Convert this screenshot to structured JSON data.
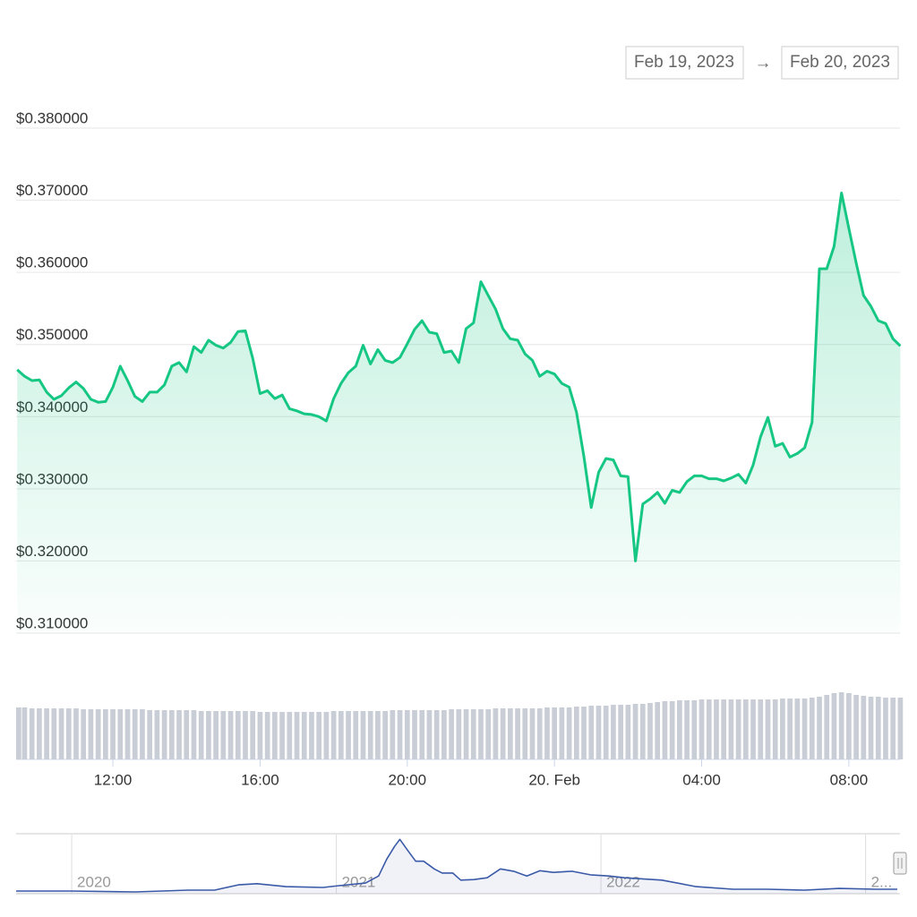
{
  "controls": {
    "from": "Feb 19, 2023",
    "separator": "→",
    "to": "Feb 20, 2023"
  },
  "chart_data": [
    {
      "type": "area",
      "color": "#16c784",
      "x": [
        9.4,
        9.6,
        9.8,
        10,
        10.2,
        10.4,
        10.6,
        10.8,
        11,
        11.2,
        11.4,
        11.6,
        11.8,
        12,
        12.2,
        12.4,
        12.6,
        12.8,
        13,
        13.2,
        13.4,
        13.6,
        13.8,
        14,
        14.2,
        14.4,
        14.6,
        14.8,
        15,
        15.2,
        15.4,
        15.6,
        15.8,
        16,
        16.2,
        16.4,
        16.6,
        16.8,
        17,
        17.2,
        17.4,
        17.6,
        17.8,
        18,
        18.2,
        18.4,
        18.6,
        18.8,
        19,
        19.2,
        19.4,
        19.6,
        19.8,
        20,
        20.2,
        20.4,
        20.6,
        20.8,
        21,
        21.2,
        21.4,
        21.6,
        21.8,
        22,
        22.2,
        22.4,
        22.6,
        22.8,
        23,
        23.2,
        23.4,
        23.6,
        23.8,
        24,
        24.2,
        24.4,
        24.6,
        24.8,
        25,
        25.2,
        25.4,
        25.6,
        25.8,
        26,
        26.2,
        26.4,
        26.6,
        26.8,
        27,
        27.2,
        27.4,
        27.6,
        27.8,
        28,
        28.2,
        28.4,
        28.6,
        28.8,
        29,
        29.2,
        29.4,
        29.6,
        29.8,
        30,
        30.2,
        30.4,
        30.6,
        30.8,
        31,
        31.2,
        31.4,
        31.6,
        31.8,
        32,
        32.2,
        32.4,
        32.6,
        32.8,
        33,
        33.2,
        33.4
      ],
      "values": [
        0.3465,
        0.3456,
        0.345,
        0.3451,
        0.3434,
        0.3424,
        0.3429,
        0.344,
        0.3448,
        0.3439,
        0.3424,
        0.342,
        0.3421,
        0.3441,
        0.347,
        0.345,
        0.3428,
        0.3421,
        0.3434,
        0.3434,
        0.3444,
        0.347,
        0.3475,
        0.3462,
        0.3497,
        0.3489,
        0.3506,
        0.3499,
        0.3495,
        0.3503,
        0.3518,
        0.3519,
        0.3481,
        0.3432,
        0.3436,
        0.3425,
        0.343,
        0.3411,
        0.3408,
        0.3404,
        0.3403,
        0.34,
        0.3394,
        0.3425,
        0.3446,
        0.3461,
        0.347,
        0.3499,
        0.3473,
        0.3493,
        0.3478,
        0.3475,
        0.3482,
        0.3501,
        0.3521,
        0.3533,
        0.3517,
        0.3515,
        0.3489,
        0.3491,
        0.3475,
        0.3522,
        0.353,
        0.3587,
        0.3568,
        0.3549,
        0.3522,
        0.3508,
        0.3506,
        0.3487,
        0.3478,
        0.3456,
        0.3463,
        0.3459,
        0.3446,
        0.3441,
        0.3406,
        0.3345,
        0.3274,
        0.3323,
        0.3342,
        0.334,
        0.3318,
        0.3317,
        0.32,
        0.3279,
        0.3286,
        0.3295,
        0.328,
        0.3298,
        0.3295,
        0.331,
        0.3318,
        0.3318,
        0.3314,
        0.3314,
        0.3311,
        0.3315,
        0.332,
        0.3308,
        0.3333,
        0.3372,
        0.3399,
        0.3359,
        0.3363,
        0.3344,
        0.3349,
        0.3357,
        0.3392,
        0.3605,
        0.3605,
        0.3636,
        0.371,
        0.3661,
        0.3613,
        0.3568,
        0.3553,
        0.3533,
        0.3529,
        0.3508,
        0.3498
      ],
      "volume": [
        58,
        58,
        57,
        57,
        57,
        57,
        57,
        57,
        57,
        56,
        56,
        56,
        56,
        56,
        56,
        56,
        56,
        56,
        55,
        55,
        55,
        55,
        55,
        55,
        55,
        54,
        54,
        54,
        54,
        54,
        54,
        54,
        54,
        53,
        53,
        53,
        53,
        53,
        53,
        53,
        53,
        53,
        53,
        54,
        54,
        54,
        54,
        54,
        54,
        54,
        54,
        55,
        55,
        55,
        55,
        55,
        55,
        55,
        55,
        56,
        56,
        56,
        56,
        56,
        56,
        57,
        57,
        57,
        57,
        57,
        57,
        57,
        58,
        58,
        58,
        58,
        59,
        59,
        60,
        60,
        60,
        61,
        61,
        61,
        62,
        62,
        63,
        64,
        65,
        65,
        66,
        66,
        66,
        67,
        67,
        67,
        67,
        67,
        67,
        67,
        67,
        67,
        67,
        67,
        68,
        68,
        68,
        68,
        69,
        70,
        72,
        74,
        75,
        74,
        72,
        71,
        70,
        70,
        69,
        69,
        69
      ],
      "volume_color": "#c9ced6",
      "xlim": [
        9.37,
        33.39
      ],
      "xticks": [
        {
          "value": 12,
          "label": "12:00"
        },
        {
          "value": 16,
          "label": "16:00"
        },
        {
          "value": 20,
          "label": "20:00"
        },
        {
          "value": 24,
          "label": "20. Feb"
        },
        {
          "value": 28,
          "label": "04:00"
        },
        {
          "value": 32,
          "label": "08:00"
        }
      ],
      "ylim": [
        0.31,
        0.38
      ],
      "yticks": [
        {
          "value": 0.38,
          "label": "$0.380000"
        },
        {
          "value": 0.37,
          "label": "$0.370000"
        },
        {
          "value": 0.36,
          "label": "$0.360000"
        },
        {
          "value": 0.35,
          "label": "$0.350000"
        },
        {
          "value": 0.34,
          "label": "$0.340000"
        },
        {
          "value": 0.33,
          "label": "$0.330000"
        },
        {
          "value": 0.32,
          "label": "$0.320000"
        },
        {
          "value": 0.31,
          "label": "$0.310000"
        }
      ],
      "grid": true
    },
    {
      "type": "area",
      "color": "#3a5aa8",
      "x": [
        2019.79,
        2020.0,
        2020.24,
        2020.44,
        2020.54,
        2020.63,
        2020.7,
        2020.81,
        2020.95,
        2021.01,
        2021.11,
        2021.16,
        2021.19,
        2021.22,
        2021.24,
        2021.27,
        2021.3,
        2021.33,
        2021.37,
        2021.4,
        2021.44,
        2021.47,
        2021.52,
        2021.57,
        2021.62,
        2021.67,
        2021.72,
        2021.77,
        2021.82,
        2021.89,
        2021.96,
        2022.03,
        2022.09,
        2022.23,
        2022.36,
        2022.5,
        2022.63,
        2022.77,
        2022.9,
        2023.04,
        2023.12
      ],
      "values": [
        4.5,
        4.5,
        3,
        6,
        6,
        15,
        17,
        12,
        10.6,
        13.6,
        18,
        30,
        58,
        80,
        92,
        73,
        55,
        55,
        42,
        35,
        35,
        23,
        24,
        27,
        42,
        38,
        30,
        39,
        36,
        38,
        32,
        30,
        27,
        23,
        12,
        7.6,
        7.6,
        6,
        9,
        7.6,
        7.6
      ],
      "xlim": [
        2019.79,
        2023.13
      ],
      "xticks": [
        2020,
        2021,
        2022,
        {
          "value": 2023,
          "label": "2..."
        }
      ],
      "ylim": [
        0,
        100
      ],
      "grid": true
    }
  ]
}
